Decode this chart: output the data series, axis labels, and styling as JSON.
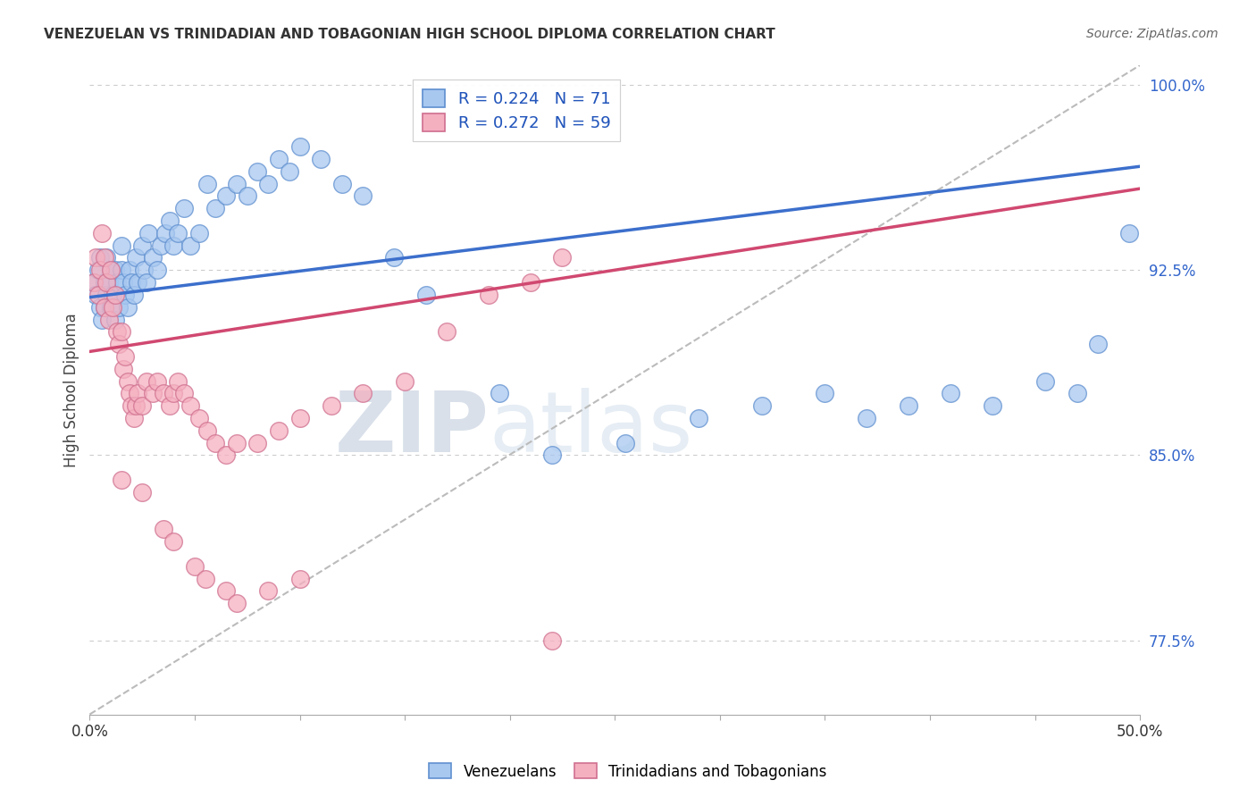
{
  "title": "VENEZUELAN VS TRINIDADIAN AND TOBAGONIAN HIGH SCHOOL DIPLOMA CORRELATION CHART",
  "source": "Source: ZipAtlas.com",
  "ylabel": "High School Diploma",
  "legend_venezuelans": "Venezuelans",
  "legend_trinidadians": "Trinidadians and Tobagonians",
  "R_venezuelan": 0.224,
  "N_venezuelan": 71,
  "R_trinidadian": 0.272,
  "N_trinidadian": 59,
  "blue_color": "#A8C8F0",
  "blue_edge_color": "#6090D0",
  "pink_color": "#F5B0C0",
  "pink_edge_color": "#D07090",
  "blue_line_color": "#3C6FCC",
  "pink_line_color": "#D04870",
  "ref_line_color": "#BBBBBB",
  "watermark_color": "#D0DCF0",
  "xlim": [
    0.0,
    0.5
  ],
  "ylim": [
    0.745,
    1.008
  ],
  "ytick_vals": [
    0.775,
    0.85,
    0.925,
    1.0
  ],
  "ytick_labels": [
    "77.5%",
    "85.0%",
    "92.5%",
    "100.0%"
  ],
  "blue_trend": [
    0.0,
    0.5,
    0.914,
    0.967
  ],
  "pink_trend": [
    0.0,
    0.5,
    0.892,
    0.958
  ],
  "ref_line": [
    0.0,
    0.5,
    0.745,
    1.008
  ],
  "ven_x": [
    0.002,
    0.003,
    0.004,
    0.005,
    0.005,
    0.006,
    0.007,
    0.007,
    0.008,
    0.008,
    0.009,
    0.01,
    0.01,
    0.011,
    0.012,
    0.012,
    0.013,
    0.014,
    0.015,
    0.015,
    0.016,
    0.017,
    0.018,
    0.019,
    0.02,
    0.021,
    0.022,
    0.023,
    0.025,
    0.026,
    0.027,
    0.028,
    0.03,
    0.032,
    0.034,
    0.036,
    0.038,
    0.04,
    0.042,
    0.045,
    0.048,
    0.052,
    0.056,
    0.06,
    0.065,
    0.07,
    0.075,
    0.08,
    0.085,
    0.09,
    0.095,
    0.1,
    0.11,
    0.12,
    0.13,
    0.145,
    0.16,
    0.195,
    0.22,
    0.255,
    0.29,
    0.32,
    0.35,
    0.37,
    0.39,
    0.41,
    0.43,
    0.455,
    0.47,
    0.48,
    0.495
  ],
  "ven_y": [
    0.92,
    0.915,
    0.925,
    0.91,
    0.93,
    0.905,
    0.92,
    0.91,
    0.915,
    0.93,
    0.92,
    0.925,
    0.91,
    0.915,
    0.925,
    0.905,
    0.92,
    0.91,
    0.925,
    0.935,
    0.92,
    0.915,
    0.91,
    0.925,
    0.92,
    0.915,
    0.93,
    0.92,
    0.935,
    0.925,
    0.92,
    0.94,
    0.93,
    0.925,
    0.935,
    0.94,
    0.945,
    0.935,
    0.94,
    0.95,
    0.935,
    0.94,
    0.96,
    0.95,
    0.955,
    0.96,
    0.955,
    0.965,
    0.96,
    0.97,
    0.965,
    0.975,
    0.97,
    0.96,
    0.955,
    0.93,
    0.915,
    0.875,
    0.85,
    0.855,
    0.865,
    0.87,
    0.875,
    0.865,
    0.87,
    0.875,
    0.87,
    0.88,
    0.875,
    0.895,
    0.94
  ],
  "tri_x": [
    0.002,
    0.003,
    0.004,
    0.005,
    0.006,
    0.007,
    0.007,
    0.008,
    0.009,
    0.01,
    0.011,
    0.012,
    0.013,
    0.014,
    0.015,
    0.016,
    0.017,
    0.018,
    0.019,
    0.02,
    0.021,
    0.022,
    0.023,
    0.025,
    0.027,
    0.03,
    0.032,
    0.035,
    0.038,
    0.04,
    0.042,
    0.045,
    0.048,
    0.052,
    0.056,
    0.06,
    0.065,
    0.07,
    0.08,
    0.09,
    0.1,
    0.115,
    0.13,
    0.15,
    0.17,
    0.19,
    0.21,
    0.225,
    0.015,
    0.025,
    0.035,
    0.04,
    0.05,
    0.055,
    0.065,
    0.07,
    0.085,
    0.1,
    0.22
  ],
  "tri_y": [
    0.92,
    0.93,
    0.915,
    0.925,
    0.94,
    0.91,
    0.93,
    0.92,
    0.905,
    0.925,
    0.91,
    0.915,
    0.9,
    0.895,
    0.9,
    0.885,
    0.89,
    0.88,
    0.875,
    0.87,
    0.865,
    0.87,
    0.875,
    0.87,
    0.88,
    0.875,
    0.88,
    0.875,
    0.87,
    0.875,
    0.88,
    0.875,
    0.87,
    0.865,
    0.86,
    0.855,
    0.85,
    0.855,
    0.855,
    0.86,
    0.865,
    0.87,
    0.875,
    0.88,
    0.9,
    0.915,
    0.92,
    0.93,
    0.84,
    0.835,
    0.82,
    0.815,
    0.805,
    0.8,
    0.795,
    0.79,
    0.795,
    0.8,
    0.775
  ]
}
